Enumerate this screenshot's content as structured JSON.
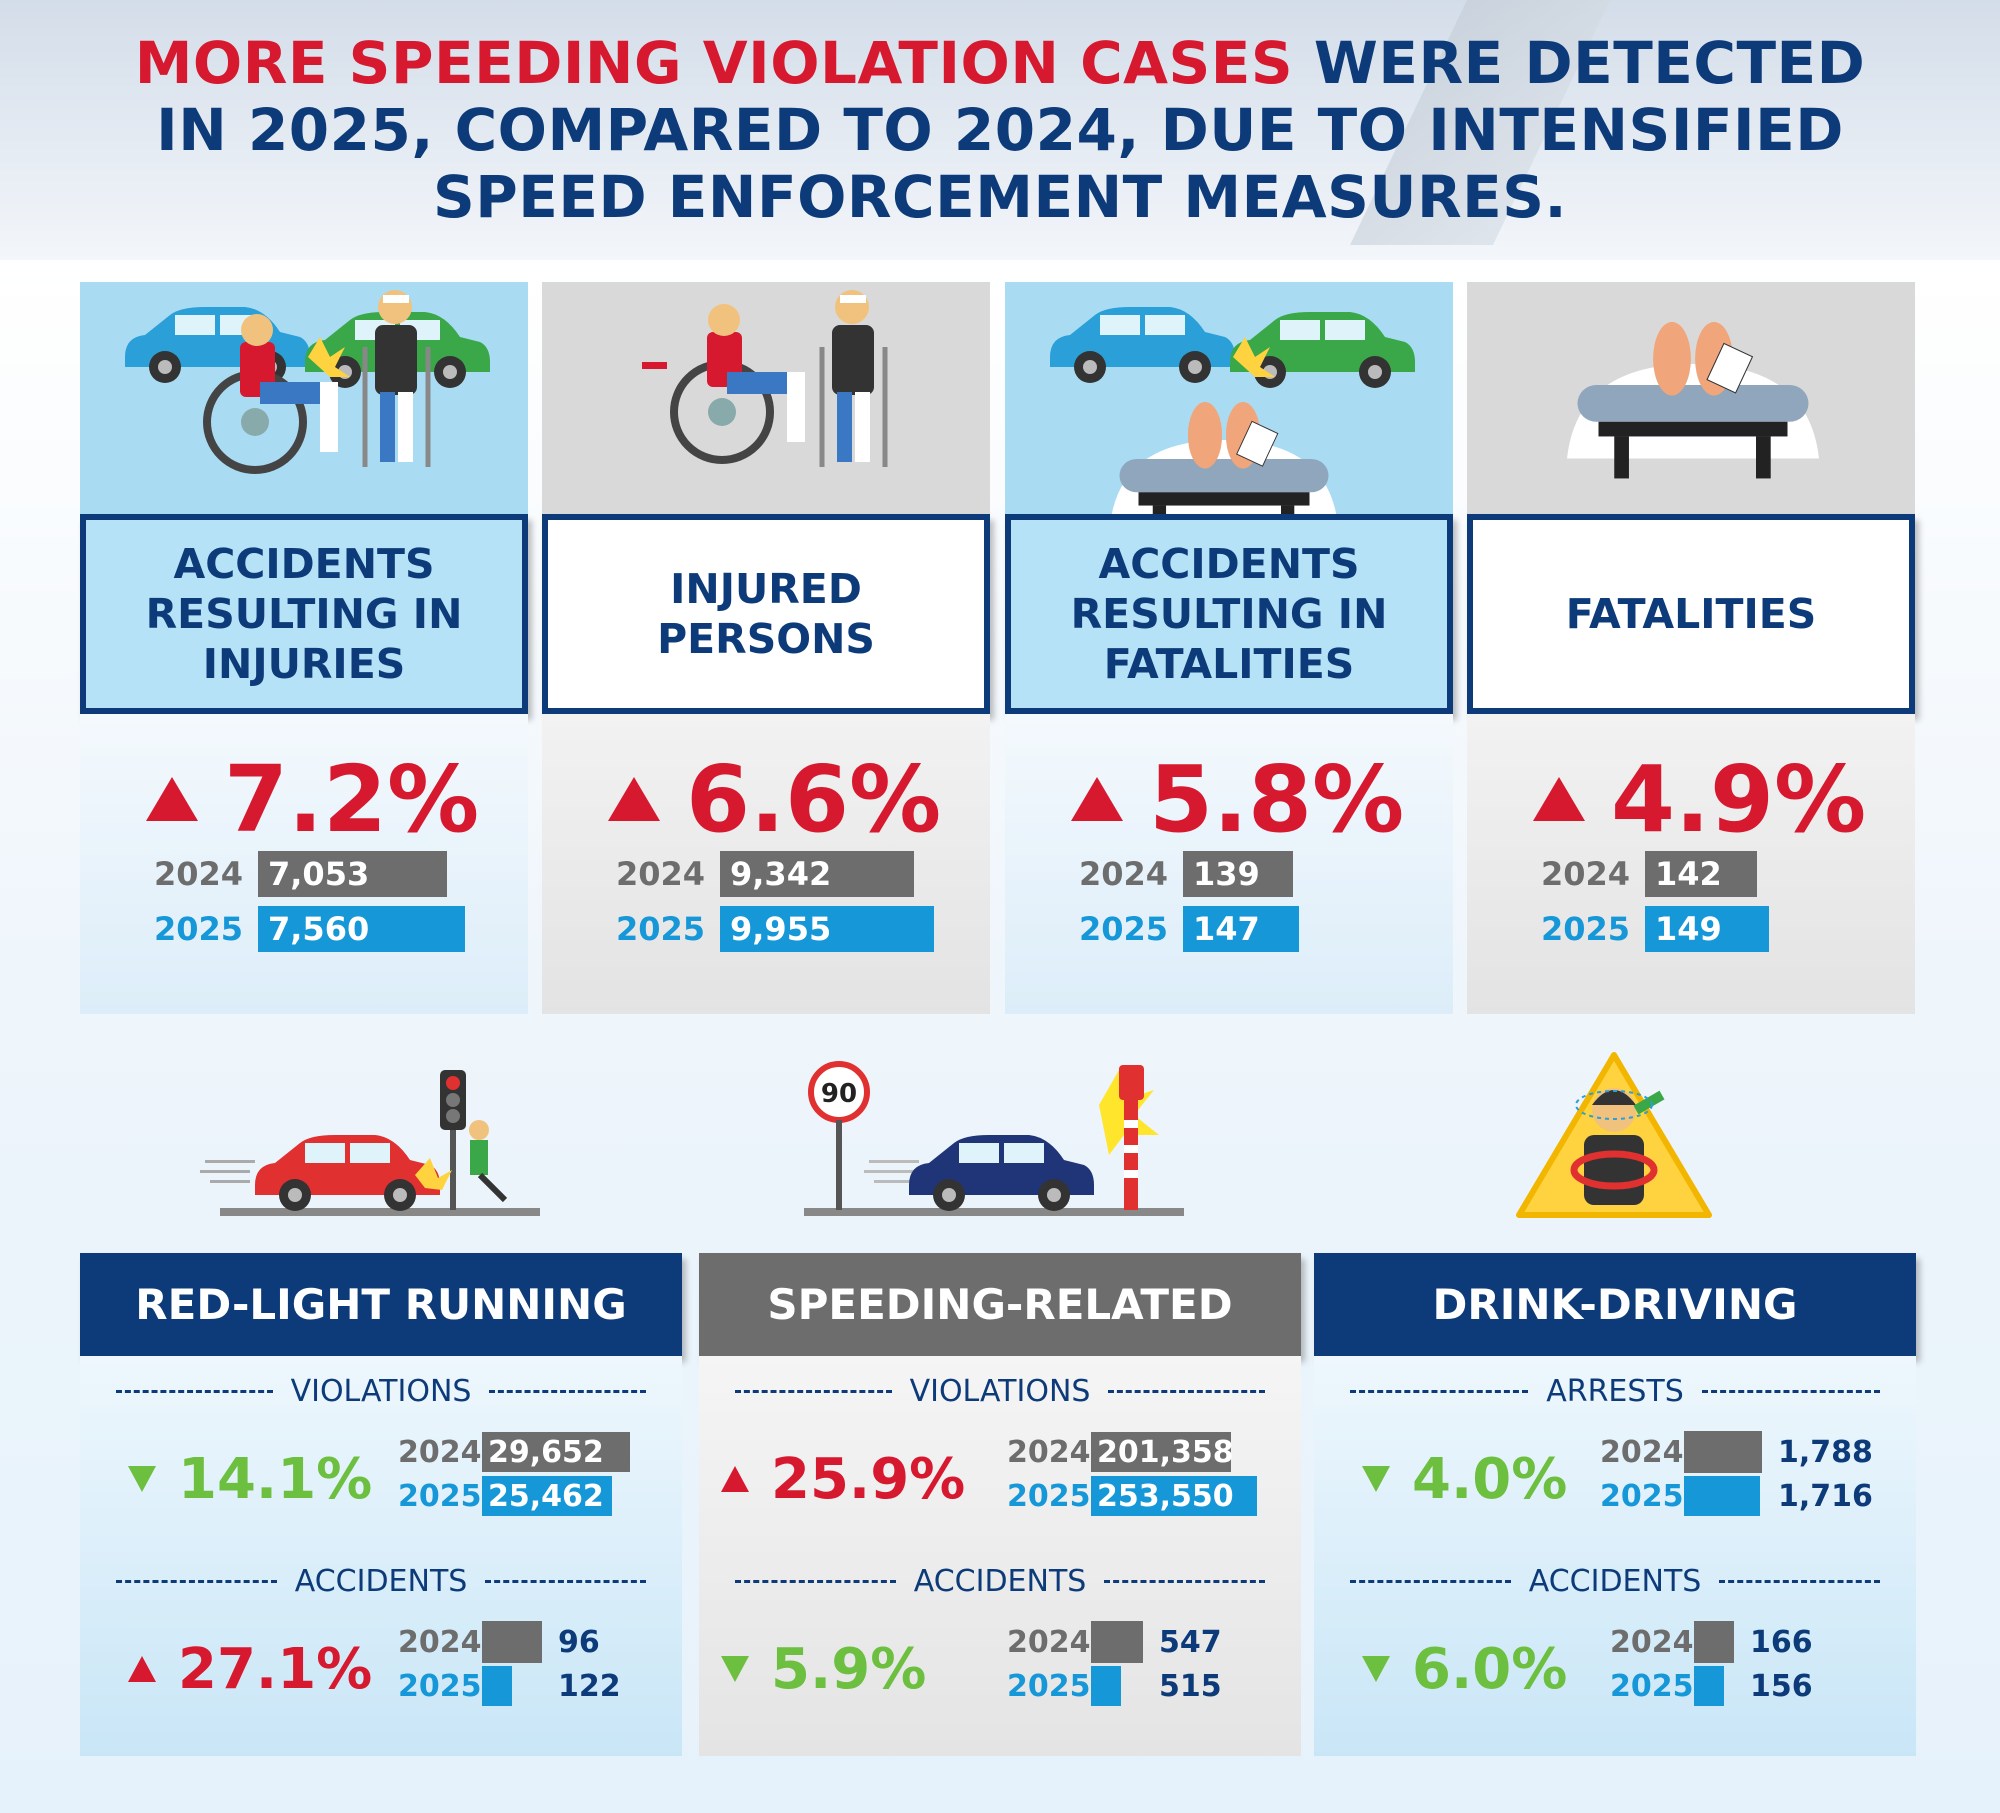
{
  "title": {
    "highlight": "MORE SPEEDING VIOLATION CASES",
    "line1_rest": " WERE DETECTED",
    "line2": "IN 2025, COMPARED TO 2024, DUE TO INTENSIFIED",
    "line3": "SPEED ENFORCEMENT MEASURES."
  },
  "colors": {
    "red": "#d7192f",
    "navy": "#0d3b7a",
    "gray": "#6d6d6d",
    "blue": "#1597d8",
    "green": "#6cbf3f"
  },
  "cards": [
    {
      "label": "ACCIDENTS RESULTING IN INJURIES",
      "icon": "injured-people-crash-icon",
      "change": "7.2%",
      "direction": "up",
      "y2024_label": "2024",
      "y2024": "7,053",
      "y2025_label": "2025",
      "y2025": "7,560"
    },
    {
      "label": "INJURED PERSONS",
      "icon": "injured-people-icon",
      "change": "6.6%",
      "direction": "up",
      "y2024_label": "2024",
      "y2024": "9,342",
      "y2025_label": "2025",
      "y2025": "9,955"
    },
    {
      "label": "ACCIDENTS RESULTING IN FATALITIES",
      "icon": "crash-fatality-icon",
      "change": "5.8%",
      "direction": "up",
      "y2024_label": "2024",
      "y2024": "139",
      "y2025_label": "2025",
      "y2025": "147"
    },
    {
      "label": "FATALITIES",
      "icon": "morgue-body-icon",
      "change": "4.9%",
      "direction": "up",
      "y2024_label": "2024",
      "y2024": "142",
      "y2025_label": "2025",
      "y2025": "149"
    }
  ],
  "sections": [
    {
      "title": "RED-LIGHT RUNNING",
      "icon": "red-light-crash-icon",
      "speed_sign": "",
      "blocks": [
        {
          "label": "VIOLATIONS",
          "change": "14.1%",
          "direction": "down",
          "y2024_label": "2024",
          "y2024": "29,652",
          "y2025_label": "2025",
          "y2025": "25,462"
        },
        {
          "label": "ACCIDENTS",
          "change": "27.1%",
          "direction": "up",
          "y2024_label": "2024",
          "y2024": "96",
          "y2025_label": "2025",
          "y2025": "122"
        }
      ]
    },
    {
      "title": "SPEEDING-RELATED",
      "icon": "speeding-car-icon",
      "speed_sign": "90",
      "blocks": [
        {
          "label": "VIOLATIONS",
          "change": "25.9%",
          "direction": "up",
          "y2024_label": "2024",
          "y2024": "201,358",
          "y2025_label": "2025",
          "y2025": "253,550"
        },
        {
          "label": "ACCIDENTS",
          "change": "5.9%",
          "direction": "down",
          "y2024_label": "2024",
          "y2024": "547",
          "y2025_label": "2025",
          "y2025": "515"
        }
      ]
    },
    {
      "title": "DRINK-DRIVING",
      "icon": "drunk-driver-warning-icon",
      "speed_sign": "",
      "blocks": [
        {
          "label": "ARRESTS",
          "change": "4.0%",
          "direction": "down",
          "y2024_label": "2024",
          "y2024": "1,788",
          "y2025_label": "2025",
          "y2025": "1,716"
        },
        {
          "label": "ACCIDENTS",
          "change": "6.0%",
          "direction": "down",
          "y2024_label": "2024",
          "y2024": "166",
          "y2025_label": "2025",
          "y2025": "156"
        }
      ]
    }
  ]
}
